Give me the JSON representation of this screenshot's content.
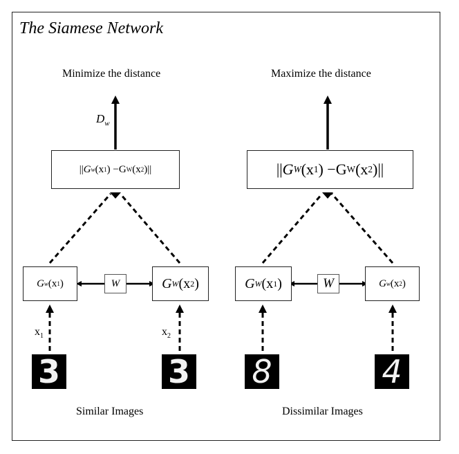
{
  "title": "The Siamese Network",
  "left": {
    "caption_top": "Minimize the distance",
    "caption_bottom": "Similar Images",
    "dw_symbol": "D",
    "dw_sub": "w",
    "distance_box": {
      "G": "G",
      "w": "w",
      "x1": "x",
      "s1": "1",
      "G2": "G",
      "W2": "W",
      "x2": "x",
      "s2": "2"
    },
    "input_left": {
      "G": "G",
      "sub": "w",
      "x": "x",
      "s": "1"
    },
    "weights": "W",
    "input_right": {
      "G": "G",
      "sub": "W",
      "x": "x",
      "s": "2"
    },
    "x1_label": "x",
    "x1_sub": "1",
    "x2_label": "x",
    "x2_sub": "2",
    "image_left": "3",
    "image_right": "3"
  },
  "right": {
    "caption_top": "Maximize the distance",
    "caption_bottom": "Dissimilar Images",
    "distance_box": {
      "G": "G",
      "w": "W",
      "x1": "x",
      "s1": "1",
      "G2": "G",
      "W2": "W",
      "x2": "x",
      "s2": "2"
    },
    "input_left": {
      "G": "G",
      "sub": "W",
      "x": "x",
      "s": "1"
    },
    "weights": "W",
    "input_right": {
      "G": "G",
      "sub": "w",
      "x": "x",
      "s": "2"
    },
    "image_left": "8",
    "image_right": "4"
  },
  "colors": {
    "stroke": "#000000",
    "background": "#ffffff",
    "digit_bg": "#000000",
    "digit_fg": "#f2f2f2"
  }
}
